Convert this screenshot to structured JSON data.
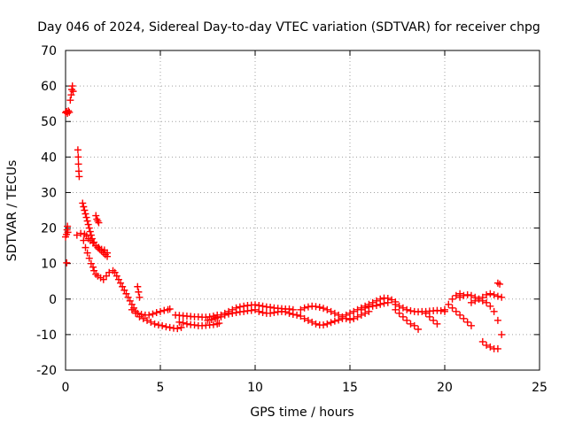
{
  "chart_data": {
    "type": "scatter",
    "title": "Day 046 of 2024, Sidereal Day-to-day VTEC variation (SDTVAR) for receiver chpg",
    "xlabel": "GPS time / hours",
    "ylabel": "SDTVAR / TECUs",
    "xlim": [
      0,
      25
    ],
    "ylim": [
      -20,
      70
    ],
    "xticks": [
      0,
      5,
      10,
      15,
      20,
      25
    ],
    "yticks": [
      -20,
      -10,
      0,
      10,
      20,
      30,
      40,
      50,
      60,
      70
    ],
    "grid": true,
    "marker": "+",
    "color": "#ff0000",
    "series": [
      {
        "name": "SDTVAR",
        "points": [
          [
            0.0,
            52.5
          ],
          [
            0.05,
            52.8
          ],
          [
            0.1,
            52.3
          ],
          [
            0.15,
            53.0
          ],
          [
            0.2,
            52.6
          ],
          [
            0.25,
            56
          ],
          [
            0.3,
            57.5
          ],
          [
            0.33,
            59
          ],
          [
            0.36,
            60
          ],
          [
            0.4,
            58.5
          ],
          [
            0.0,
            17.5
          ],
          [
            0.05,
            18.2
          ],
          [
            0.08,
            19.5
          ],
          [
            0.1,
            20.5
          ],
          [
            0.12,
            18.8
          ],
          [
            0.06,
            10.2
          ],
          [
            0.65,
            42
          ],
          [
            0.67,
            40
          ],
          [
            0.68,
            38
          ],
          [
            0.7,
            36
          ],
          [
            0.72,
            34.5
          ],
          [
            0.6,
            18
          ],
          [
            0.8,
            18.5
          ],
          [
            1.0,
            18.3
          ],
          [
            1.1,
            17.8
          ],
          [
            1.2,
            17
          ],
          [
            1.3,
            16.5
          ],
          [
            1.45,
            15.8
          ],
          [
            1.6,
            15
          ],
          [
            1.75,
            14.5
          ],
          [
            1.9,
            14
          ],
          [
            2.05,
            13.8
          ],
          [
            2.2,
            13
          ],
          [
            0.9,
            27
          ],
          [
            0.95,
            26
          ],
          [
            1.0,
            25
          ],
          [
            1.05,
            24
          ],
          [
            1.1,
            23
          ],
          [
            1.15,
            22
          ],
          [
            1.2,
            21
          ],
          [
            1.25,
            20
          ],
          [
            1.3,
            19
          ],
          [
            1.35,
            18
          ],
          [
            1.4,
            17
          ],
          [
            1.5,
            16
          ],
          [
            1.6,
            15
          ],
          [
            1.7,
            14.5
          ],
          [
            1.8,
            14
          ],
          [
            1.9,
            13.5
          ],
          [
            2.0,
            13
          ],
          [
            2.1,
            12.5
          ],
          [
            2.2,
            12
          ],
          [
            1.6,
            23.5
          ],
          [
            1.65,
            22.5
          ],
          [
            1.7,
            22
          ],
          [
            1.75,
            21.5
          ],
          [
            0.95,
            16.5
          ],
          [
            1.05,
            14.5
          ],
          [
            1.15,
            13
          ],
          [
            1.25,
            11.5
          ],
          [
            1.35,
            10
          ],
          [
            1.45,
            9
          ],
          [
            1.5,
            8
          ],
          [
            1.6,
            7
          ],
          [
            1.7,
            6.5
          ],
          [
            1.85,
            6
          ],
          [
            2.0,
            5.5
          ],
          [
            2.15,
            6.5
          ],
          [
            2.3,
            7.5
          ],
          [
            2.5,
            8
          ],
          [
            2.6,
            7.5
          ],
          [
            2.7,
            6.5
          ],
          [
            2.8,
            5.5
          ],
          [
            2.9,
            4.5
          ],
          [
            3.0,
            3.5
          ],
          [
            3.1,
            2.5
          ],
          [
            3.2,
            1.5
          ],
          [
            3.3,
            0.5
          ],
          [
            3.4,
            -0.5
          ],
          [
            3.5,
            -1.5
          ],
          [
            3.6,
            -2.5
          ],
          [
            3.7,
            -3.5
          ],
          [
            3.8,
            3.5
          ],
          [
            3.85,
            2
          ],
          [
            3.9,
            0.5
          ],
          [
            3.8,
            -4
          ],
          [
            4.0,
            -4.3
          ],
          [
            4.2,
            -4.5
          ],
          [
            4.4,
            -4.5
          ],
          [
            4.6,
            -4.2
          ],
          [
            4.8,
            -3.8
          ],
          [
            5.0,
            -3.5
          ],
          [
            5.2,
            -3.2
          ],
          [
            5.4,
            -3
          ],
          [
            5.5,
            -2.8
          ],
          [
            3.5,
            -3
          ],
          [
            3.7,
            -4
          ],
          [
            3.9,
            -5
          ],
          [
            4.1,
            -5.5
          ],
          [
            4.3,
            -6
          ],
          [
            4.5,
            -6.5
          ],
          [
            4.7,
            -7
          ],
          [
            4.9,
            -7.3
          ],
          [
            5.1,
            -7.5
          ],
          [
            5.3,
            -7.8
          ],
          [
            5.5,
            -8
          ],
          [
            5.7,
            -8.2
          ],
          [
            5.9,
            -8.3
          ],
          [
            6.1,
            -8
          ],
          [
            5.8,
            -4.5
          ],
          [
            6.0,
            -4.6
          ],
          [
            6.2,
            -4.7
          ],
          [
            6.4,
            -4.8
          ],
          [
            6.6,
            -4.9
          ],
          [
            6.8,
            -5
          ],
          [
            7.0,
            -5
          ],
          [
            7.2,
            -5.1
          ],
          [
            7.4,
            -5.1
          ],
          [
            7.6,
            -5
          ],
          [
            7.8,
            -4.8
          ],
          [
            8.0,
            -4.5
          ],
          [
            6.0,
            -6.5
          ],
          [
            6.2,
            -6.7
          ],
          [
            6.4,
            -7
          ],
          [
            6.6,
            -7.2
          ],
          [
            6.8,
            -7.3
          ],
          [
            7.0,
            -7.5
          ],
          [
            7.2,
            -7.5
          ],
          [
            7.4,
            -7.4
          ],
          [
            7.6,
            -7.3
          ],
          [
            7.8,
            -7.2
          ],
          [
            8.0,
            -7
          ],
          [
            8.1,
            -6.8
          ],
          [
            7.5,
            -6
          ],
          [
            7.7,
            -5.8
          ],
          [
            7.9,
            -5.5
          ],
          [
            8.0,
            -5.2
          ],
          [
            8.2,
            -4.5
          ],
          [
            8.4,
            -4
          ],
          [
            8.6,
            -3.5
          ],
          [
            8.8,
            -3
          ],
          [
            9.0,
            -2.5
          ],
          [
            9.2,
            -2.2
          ],
          [
            9.4,
            -2
          ],
          [
            9.6,
            -1.8
          ],
          [
            9.8,
            -1.7
          ],
          [
            10.0,
            -1.6
          ],
          [
            8.2,
            -5
          ],
          [
            8.4,
            -4.5
          ],
          [
            8.6,
            -4.2
          ],
          [
            8.8,
            -4
          ],
          [
            9.0,
            -3.8
          ],
          [
            9.2,
            -3.6
          ],
          [
            9.4,
            -3.5
          ],
          [
            9.6,
            -3.3
          ],
          [
            9.8,
            -3.2
          ],
          [
            10.0,
            -3
          ],
          [
            10.2,
            -1.8
          ],
          [
            10.4,
            -2
          ],
          [
            10.6,
            -2.2
          ],
          [
            10.8,
            -2.3
          ],
          [
            11.0,
            -2.5
          ],
          [
            11.2,
            -2.6
          ],
          [
            11.4,
            -2.7
          ],
          [
            11.6,
            -2.8
          ],
          [
            11.8,
            -2.8
          ],
          [
            12.0,
            -3
          ],
          [
            10.2,
            -3.5
          ],
          [
            10.4,
            -3.8
          ],
          [
            10.6,
            -4
          ],
          [
            10.8,
            -4
          ],
          [
            11.0,
            -3.8
          ],
          [
            11.2,
            -3.6
          ],
          [
            11.4,
            -3.5
          ],
          [
            11.6,
            -3.6
          ],
          [
            11.8,
            -4
          ],
          [
            12.0,
            -4.3
          ],
          [
            12.2,
            -4.5
          ],
          [
            12.4,
            -4.8
          ],
          [
            12.4,
            -3
          ],
          [
            12.6,
            -2.5
          ],
          [
            12.8,
            -2.2
          ],
          [
            13.0,
            -2
          ],
          [
            13.2,
            -2.1
          ],
          [
            13.4,
            -2.3
          ],
          [
            13.6,
            -2.6
          ],
          [
            13.8,
            -3
          ],
          [
            14.0,
            -3.5
          ],
          [
            14.2,
            -4
          ],
          [
            14.4,
            -4.5
          ],
          [
            14.6,
            -5
          ],
          [
            12.6,
            -5.5
          ],
          [
            12.8,
            -6
          ],
          [
            13.0,
            -6.5
          ],
          [
            13.2,
            -7
          ],
          [
            13.4,
            -7.3
          ],
          [
            13.6,
            -7.3
          ],
          [
            13.8,
            -7
          ],
          [
            14.0,
            -6.6
          ],
          [
            14.2,
            -6.2
          ],
          [
            14.4,
            -5.9
          ],
          [
            14.6,
            -5.5
          ],
          [
            14.8,
            -5.5
          ],
          [
            15.0,
            -5.8
          ],
          [
            15.2,
            -5.5
          ],
          [
            15.4,
            -5
          ],
          [
            15.6,
            -4.5
          ],
          [
            15.8,
            -4
          ],
          [
            16.0,
            -3.5
          ],
          [
            14.8,
            -4.5
          ],
          [
            15.0,
            -4
          ],
          [
            15.2,
            -3.5
          ],
          [
            15.4,
            -3
          ],
          [
            15.6,
            -2.5
          ],
          [
            15.8,
            -2
          ],
          [
            16.0,
            -1.5
          ],
          [
            16.2,
            -1
          ],
          [
            16.4,
            -0.5
          ],
          [
            16.6,
            0
          ],
          [
            16.8,
            0.3
          ],
          [
            17.0,
            0.2
          ],
          [
            17.2,
            -0.2
          ],
          [
            17.4,
            -0.8
          ],
          [
            15.6,
            -3
          ],
          [
            15.8,
            -2.5
          ],
          [
            16.0,
            -2.2
          ],
          [
            16.2,
            -2
          ],
          [
            16.4,
            -1.8
          ],
          [
            16.6,
            -1.5
          ],
          [
            16.8,
            -1.2
          ],
          [
            17.0,
            -1
          ],
          [
            17.4,
            -1.5
          ],
          [
            17.6,
            -2
          ],
          [
            17.8,
            -2.5
          ],
          [
            18.0,
            -3
          ],
          [
            18.2,
            -3.3
          ],
          [
            18.4,
            -3.5
          ],
          [
            18.6,
            -3.6
          ],
          [
            18.8,
            -3.5
          ],
          [
            19.0,
            -3.5
          ],
          [
            19.2,
            -3.4
          ],
          [
            19.4,
            -3.3
          ],
          [
            19.6,
            -3.2
          ],
          [
            19.8,
            -3.3
          ],
          [
            20.0,
            -3.5
          ],
          [
            17.4,
            -3
          ],
          [
            17.6,
            -4
          ],
          [
            17.8,
            -5
          ],
          [
            18.0,
            -6
          ],
          [
            18.2,
            -7
          ],
          [
            18.4,
            -7.5
          ],
          [
            18.6,
            -8.5
          ],
          [
            19.0,
            -4
          ],
          [
            19.2,
            -5
          ],
          [
            19.4,
            -6
          ],
          [
            19.6,
            -7
          ],
          [
            20.0,
            -3
          ],
          [
            20.2,
            -1.5
          ],
          [
            20.4,
            0
          ],
          [
            20.6,
            1
          ],
          [
            20.8,
            1.5
          ],
          [
            20.4,
            -2.5
          ],
          [
            20.6,
            -3.5
          ],
          [
            20.8,
            -4.5
          ],
          [
            21.0,
            -5.5
          ],
          [
            21.2,
            -6.5
          ],
          [
            21.4,
            -7.5
          ],
          [
            20.8,
            0.5
          ],
          [
            21.0,
            1
          ],
          [
            21.2,
            1.2
          ],
          [
            21.4,
            1
          ],
          [
            21.6,
            0.5
          ],
          [
            21.8,
            0
          ],
          [
            22.0,
            -0.5
          ],
          [
            22.2,
            -1
          ],
          [
            22.4,
            -2
          ],
          [
            22.6,
            -3.5
          ],
          [
            22.8,
            -6
          ],
          [
            23.0,
            -10
          ],
          [
            21.4,
            -1
          ],
          [
            21.6,
            -0.5
          ],
          [
            21.8,
            0
          ],
          [
            22.0,
            0.5
          ],
          [
            22.2,
            1.2
          ],
          [
            22.4,
            1.5
          ],
          [
            22.6,
            1.2
          ],
          [
            22.8,
            0.8
          ],
          [
            23.0,
            0.5
          ],
          [
            22.0,
            -12
          ],
          [
            22.2,
            -13
          ],
          [
            22.4,
            -13.5
          ],
          [
            22.6,
            -14
          ],
          [
            22.8,
            -14
          ],
          [
            22.8,
            4.5
          ],
          [
            22.9,
            4.2
          ]
        ]
      }
    ]
  }
}
